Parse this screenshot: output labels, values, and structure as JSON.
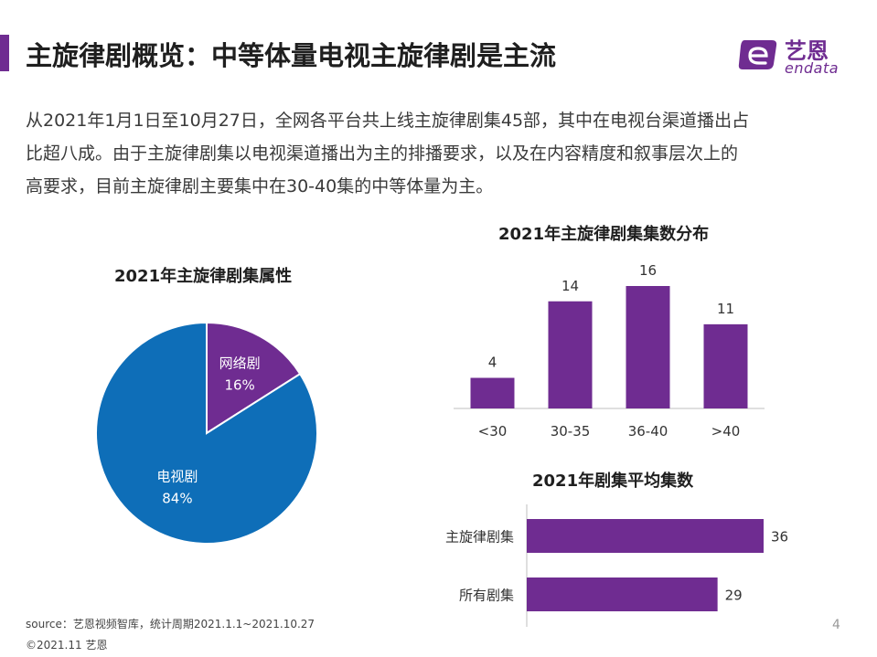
{
  "header": {
    "title": "主旋律剧概览：中等体量电视主旋律剧是主流",
    "accent_color": "#6f2c91"
  },
  "logo": {
    "cn": "艺恩",
    "en": "endata"
  },
  "intro": {
    "lines": [
      "从2021年1月1日至10月27日，全网各平台共上线主旋律剧集45部，其中在电视台渠道播出占",
      "比超八成。由于主旋律剧集以电视渠道播出为主的排播要求，以及在内容精度和叙事层次上的",
      "高要求，目前主旋律剧主要集中在30-40集的中等体量为主。"
    ]
  },
  "chart_data": [
    {
      "type": "pie",
      "title": "2021年主旋律剧集属性",
      "slices": [
        {
          "label": "网络剧",
          "value": 16,
          "display": "16%",
          "color": "#6f2c91"
        },
        {
          "label": "电视剧",
          "value": 84,
          "display": "84%",
          "color": "#0e6eb8"
        }
      ]
    },
    {
      "type": "bar",
      "title": "2021年主旋律剧集集数分布",
      "categories": [
        "<30",
        "30-35",
        "36-40",
        ">40"
      ],
      "values": [
        4,
        14,
        16,
        11
      ],
      "ylim": [
        0,
        16
      ],
      "color": "#6f2c91",
      "grid": false
    },
    {
      "type": "bar",
      "orientation": "horizontal",
      "title": "2021年剧集平均集数",
      "categories": [
        "主旋律剧集",
        "所有剧集"
      ],
      "values": [
        36,
        29
      ],
      "xlim": [
        0,
        36
      ],
      "color": "#6f2c91",
      "grid": false
    }
  ],
  "footer": {
    "source": "source：艺恩视频智库，统计周期2021.1.1~2021.10.27",
    "copyright": "©2021.11 艺恩",
    "page": "4"
  }
}
